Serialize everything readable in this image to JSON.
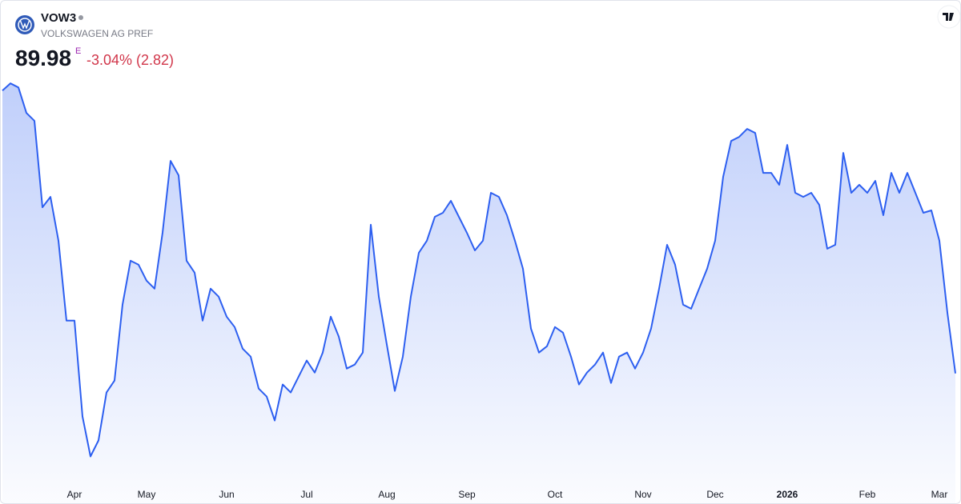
{
  "chart_data": {
    "type": "area",
    "title": "VOW3",
    "subtitle": "VOLKSWAGEN AG PREF",
    "last_price": "89.98",
    "market_status": "E",
    "change": "-3.04% (2.82)",
    "color": "#2d5ff0",
    "ylim": [
      81,
      114
    ],
    "categories": [
      null,
      null,
      null,
      null,
      null,
      null,
      null,
      null,
      null,
      "Apr",
      null,
      null,
      null,
      null,
      null,
      null,
      null,
      null,
      "May",
      null,
      null,
      null,
      null,
      null,
      null,
      null,
      null,
      null,
      "Jun",
      null,
      null,
      null,
      null,
      null,
      null,
      null,
      null,
      null,
      "Jul",
      null,
      null,
      null,
      null,
      null,
      null,
      null,
      null,
      null,
      "Aug",
      null,
      null,
      null,
      null,
      null,
      null,
      null,
      null,
      null,
      "Sep",
      null,
      null,
      null,
      null,
      null,
      null,
      null,
      null,
      null,
      null,
      "Oct",
      null,
      null,
      null,
      null,
      null,
      null,
      null,
      null,
      null,
      null,
      "Nov",
      null,
      null,
      null,
      null,
      null,
      null,
      null,
      null,
      "Dec",
      null,
      null,
      null,
      null,
      null,
      null,
      null,
      null,
      "2026",
      null,
      null,
      null,
      null,
      null,
      null,
      null,
      null,
      null,
      "Feb",
      null,
      null,
      null,
      null,
      null,
      null,
      null,
      null,
      "Mar",
      null,
      null
    ],
    "values": [
      112.28,
      112.85,
      112.53,
      110.52,
      109.89,
      103.08,
      103.9,
      100.44,
      94.14,
      94.14,
      86.58,
      83.43,
      84.69,
      88.47,
      89.41,
      95.4,
      98.86,
      98.55,
      97.29,
      96.66,
      101.07,
      106.74,
      105.6,
      98.86,
      97.92,
      94.14,
      96.66,
      96.03,
      94.45,
      93.63,
      91.93,
      91.3,
      88.78,
      88.15,
      86.26,
      89.1,
      88.47,
      89.73,
      90.99,
      90.04,
      91.62,
      94.45,
      92.88,
      90.36,
      90.67,
      91.62,
      101.7,
      96.03,
      92.25,
      88.59,
      91.3,
      96.03,
      99.49,
      100.44,
      102.33,
      102.64,
      103.59,
      102.33,
      101.07,
      99.68,
      100.44,
      104.22,
      103.9,
      102.45,
      100.44,
      98.23,
      93.51,
      91.62,
      92.12,
      93.63,
      93.19,
      91.3,
      89.1,
      90.04,
      90.67,
      91.62,
      89.22,
      91.3,
      91.62,
      90.36,
      91.62,
      93.51,
      96.66,
      100.12,
      98.55,
      95.4,
      95.08,
      96.66,
      98.23,
      100.44,
      105.48,
      108.31,
      108.63,
      109.26,
      108.94,
      105.79,
      105.79,
      104.85,
      108.0,
      104.22,
      103.9,
      104.22,
      103.27,
      99.81,
      100.12,
      107.37,
      104.22,
      104.85,
      104.22,
      105.16,
      102.45,
      105.79,
      104.22,
      105.79,
      104.22,
      102.64,
      102.83,
      100.44,
      94.77,
      89.98
    ]
  }
}
